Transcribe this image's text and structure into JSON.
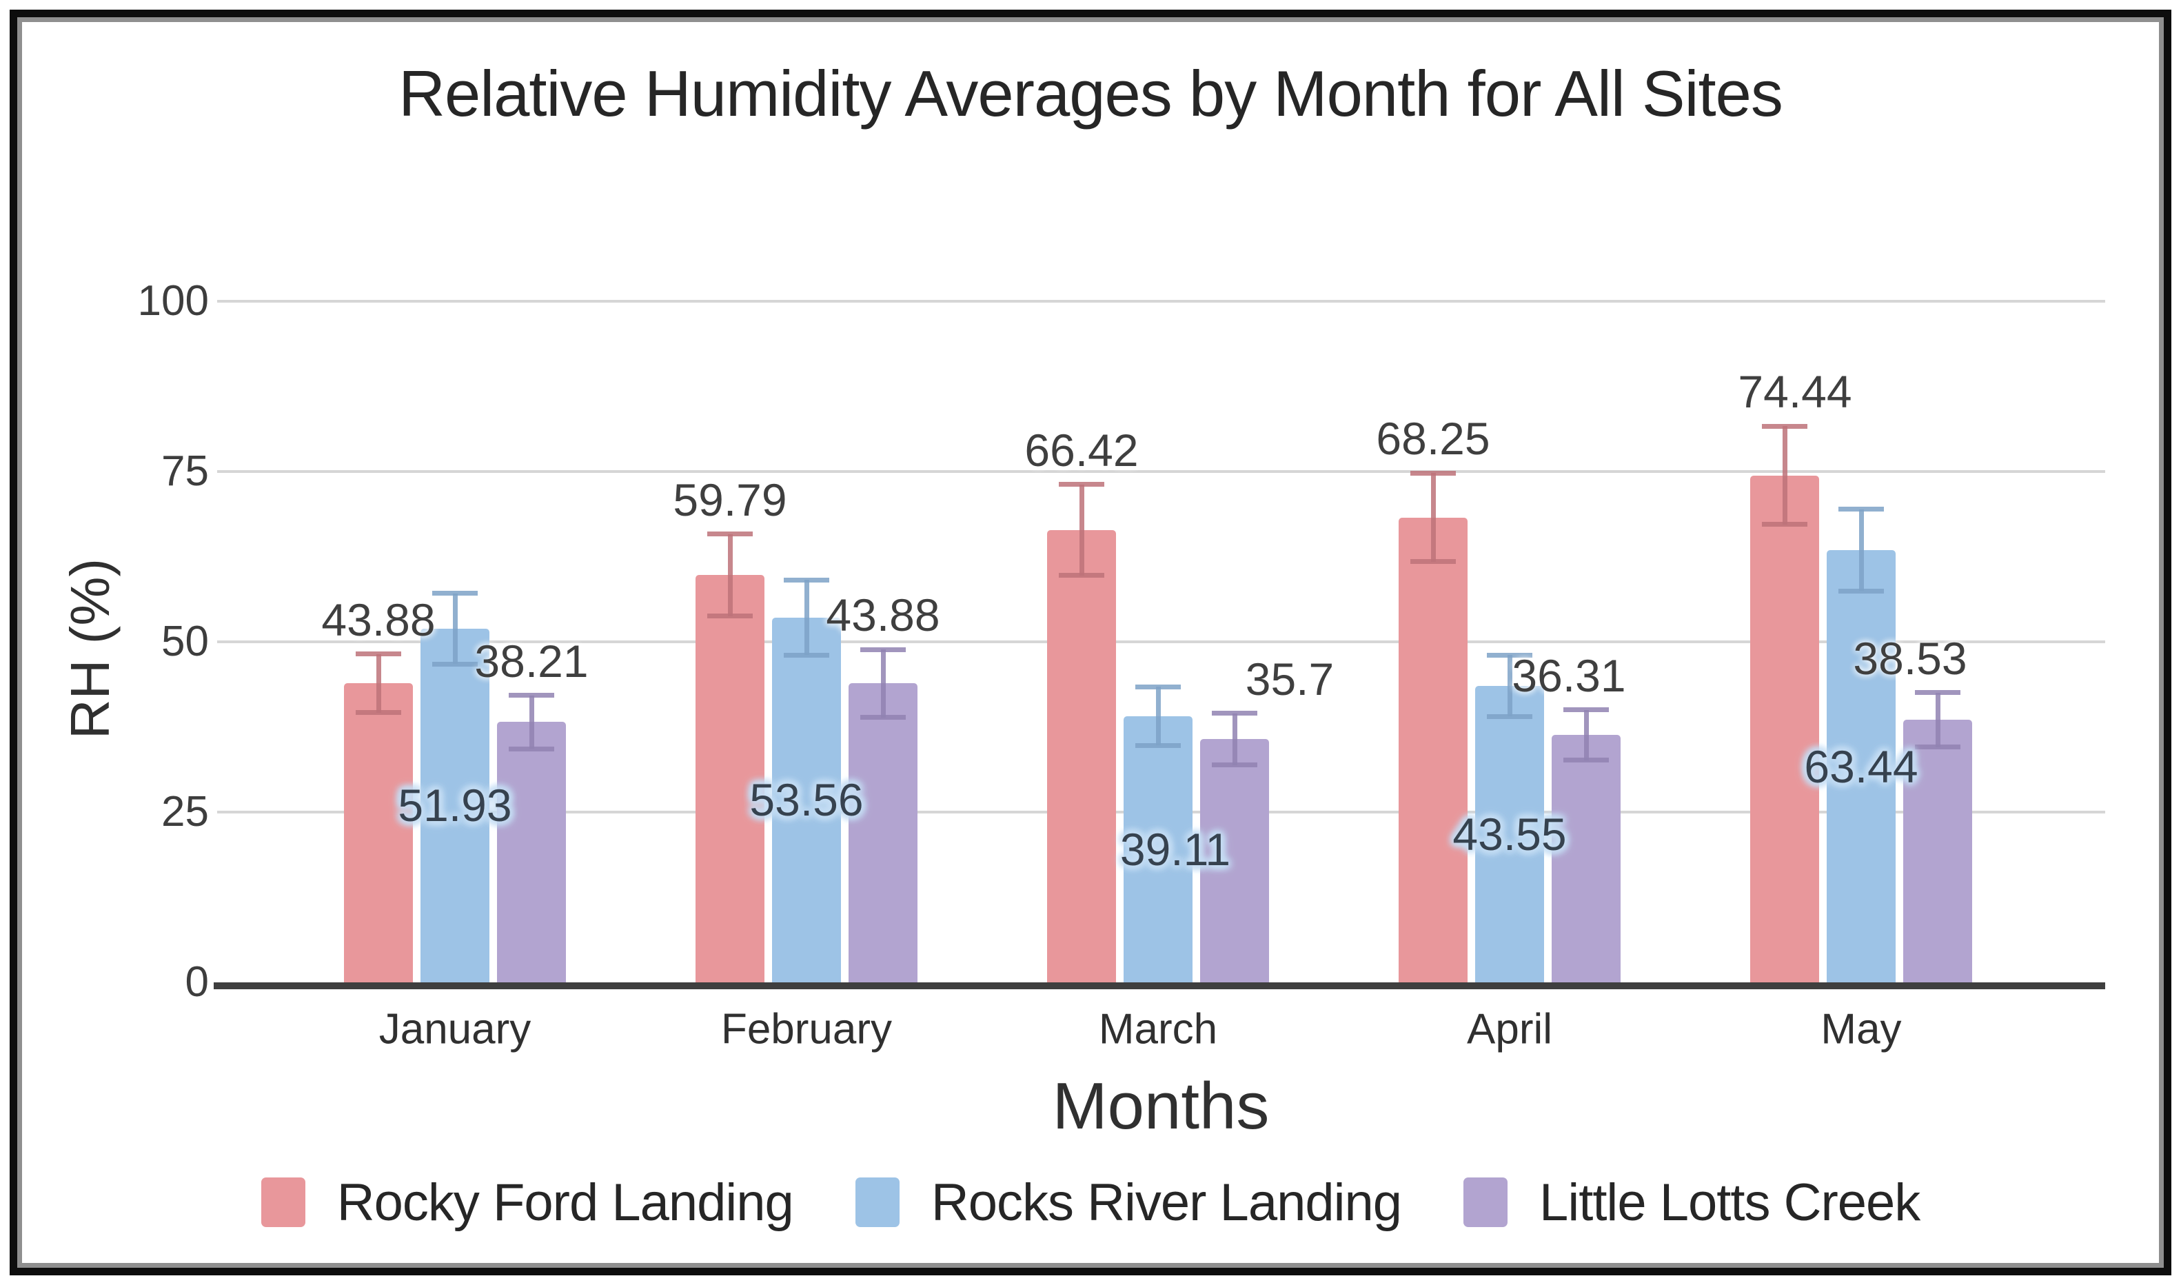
{
  "chart_data": {
    "type": "bar",
    "title": "Relative Humidity Averages by Month for All Sites",
    "xlabel": "Months",
    "ylabel": "RH (%)",
    "categories": [
      "January",
      "February",
      "March",
      "April",
      "May"
    ],
    "y_ticks": [
      100,
      75,
      50,
      25,
      0
    ],
    "ylim": [
      0,
      100
    ],
    "grid": true,
    "legend_position": "bottom",
    "error_bars": true,
    "series": [
      {
        "name": "Rocky Ford Landing",
        "color": "#e8979b",
        "error_color": "#bd7279",
        "label_mode": "outside",
        "values": [
          43.88,
          59.79,
          66.42,
          68.25,
          74.44
        ],
        "labels": [
          "43.88",
          "59.79",
          "66.42",
          "68.25",
          "74.44"
        ],
        "errors": [
          4.3,
          6.0,
          6.7,
          6.5,
          7.2
        ],
        "label_dx": [
          0,
          0,
          0,
          0,
          15
        ]
      },
      {
        "name": "Rocks River Landing",
        "color": "#9dc3e6",
        "error_color": "#7ea2c7",
        "label_mode": "center",
        "values": [
          51.93,
          53.56,
          39.11,
          43.55,
          63.44
        ],
        "labels": [
          "51.93",
          "53.56",
          "39.11",
          "43.55",
          "63.44"
        ],
        "errors": [
          5.2,
          5.5,
          4.3,
          4.5,
          6.0
        ],
        "label_dx": [
          0,
          0,
          25,
          0,
          0
        ]
      },
      {
        "name": "Little Lotts Creek",
        "color": "#b2a4d0",
        "error_color": "#9183b1",
        "label_mode": "outside",
        "values": [
          38.21,
          43.88,
          35.7,
          36.31,
          38.53
        ],
        "labels": [
          "38.21",
          "43.88",
          "35.7",
          "36.31",
          "38.53"
        ],
        "errors": [
          3.9,
          5.0,
          3.8,
          3.7,
          4.0
        ],
        "label_dx": [
          0,
          0,
          80,
          -25,
          -40
        ]
      }
    ],
    "axis_colors": {
      "gridline": "#d6d6d6",
      "axis_line": "#3f3f3f",
      "tick_text": "#3d3d3d",
      "label_text": "#3f3f3f",
      "center_label_halo": "#c6def4"
    },
    "frame_colors": {
      "outer_border": "#0d0d0d",
      "inner_border": "#8f8f8f"
    }
  }
}
